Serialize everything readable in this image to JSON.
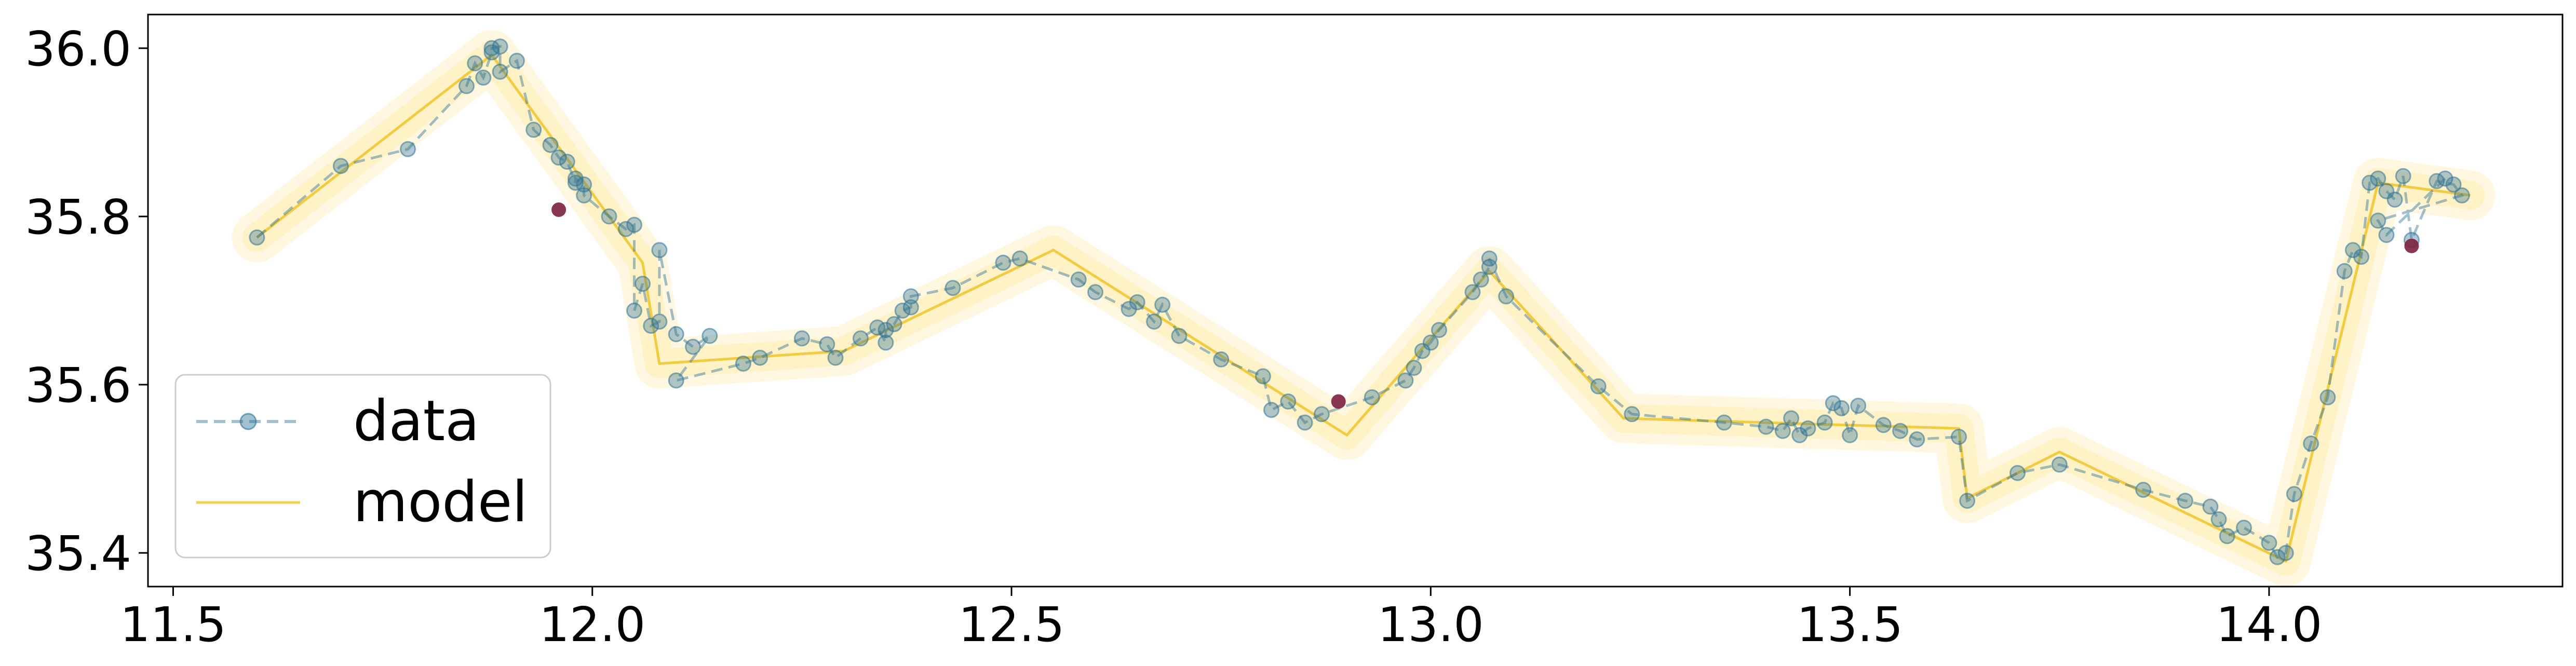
{
  "chart_data": {
    "type": "line",
    "title": "",
    "xlabel": "",
    "ylabel": "",
    "xlim": [
      11.47,
      14.35
    ],
    "ylim": [
      35.36,
      36.04
    ],
    "xticks": [
      11.5,
      12.0,
      12.5,
      13.0,
      13.5,
      14.0
    ],
    "xtick_labels": [
      "11.5",
      "12.0",
      "12.5",
      "13.0",
      "13.5",
      "14.0"
    ],
    "yticks": [
      35.4,
      35.6,
      35.8,
      36.0
    ],
    "ytick_labels": [
      "35.4",
      "35.6",
      "35.8",
      "36.0"
    ],
    "grid": false,
    "legend_position": "lower-left",
    "colors": {
      "data": "#2f7396",
      "model": "#f0c428",
      "band": "#fff1c4",
      "outlier": "#7d1f3e"
    },
    "series": [
      {
        "name": "data",
        "style": "dashed-markers",
        "points": [
          [
            11.6,
            35.775
          ],
          [
            11.7,
            35.86
          ],
          [
            11.78,
            35.88
          ],
          [
            11.85,
            35.955
          ],
          [
            11.86,
            35.982
          ],
          [
            11.87,
            35.965
          ],
          [
            11.88,
            35.995
          ],
          [
            11.88,
            36.0
          ],
          [
            11.89,
            36.002
          ],
          [
            11.89,
            35.972
          ],
          [
            11.91,
            35.985
          ],
          [
            11.93,
            35.903
          ],
          [
            11.95,
            35.885
          ],
          [
            11.96,
            35.87
          ],
          [
            11.97,
            35.865
          ],
          [
            11.98,
            35.84
          ],
          [
            11.98,
            35.845
          ],
          [
            11.99,
            35.838
          ],
          [
            11.99,
            35.825
          ],
          [
            12.02,
            35.8
          ],
          [
            12.04,
            35.785
          ],
          [
            12.05,
            35.79
          ],
          [
            12.05,
            35.688
          ],
          [
            12.06,
            35.72
          ],
          [
            12.07,
            35.67
          ],
          [
            12.08,
            35.675
          ],
          [
            12.08,
            35.76
          ],
          [
            12.1,
            35.66
          ],
          [
            12.12,
            35.645
          ],
          [
            12.14,
            35.658
          ],
          [
            12.1,
            35.605
          ],
          [
            12.18,
            35.625
          ],
          [
            12.2,
            35.632
          ],
          [
            12.25,
            35.655
          ],
          [
            12.28,
            35.648
          ],
          [
            12.29,
            35.632
          ],
          [
            12.32,
            35.655
          ],
          [
            12.34,
            35.668
          ],
          [
            12.35,
            35.65
          ],
          [
            12.35,
            35.665
          ],
          [
            12.36,
            35.672
          ],
          [
            12.37,
            35.688
          ],
          [
            12.38,
            35.692
          ],
          [
            12.38,
            35.705
          ],
          [
            12.43,
            35.715
          ],
          [
            12.49,
            35.745
          ],
          [
            12.51,
            35.75
          ],
          [
            12.58,
            35.725
          ],
          [
            12.6,
            35.71
          ],
          [
            12.64,
            35.69
          ],
          [
            12.65,
            35.698
          ],
          [
            12.67,
            35.675
          ],
          [
            12.68,
            35.695
          ],
          [
            12.7,
            35.658
          ],
          [
            12.75,
            35.63
          ],
          [
            12.8,
            35.61
          ],
          [
            12.81,
            35.57
          ],
          [
            12.83,
            35.58
          ],
          [
            12.85,
            35.555
          ],
          [
            12.87,
            35.565
          ],
          [
            12.93,
            35.585
          ],
          [
            12.97,
            35.605
          ],
          [
            12.98,
            35.62
          ],
          [
            12.99,
            35.64
          ],
          [
            13.0,
            35.65
          ],
          [
            13.01,
            35.665
          ],
          [
            13.05,
            35.71
          ],
          [
            13.06,
            35.725
          ],
          [
            13.07,
            35.74
          ],
          [
            13.07,
            35.75
          ],
          [
            13.09,
            35.705
          ],
          [
            13.2,
            35.598
          ],
          [
            13.24,
            35.565
          ],
          [
            13.35,
            35.555
          ],
          [
            13.4,
            35.55
          ],
          [
            13.42,
            35.545
          ],
          [
            13.43,
            35.56
          ],
          [
            13.44,
            35.54
          ],
          [
            13.45,
            35.548
          ],
          [
            13.47,
            35.555
          ],
          [
            13.48,
            35.578
          ],
          [
            13.49,
            35.572
          ],
          [
            13.5,
            35.54
          ],
          [
            13.51,
            35.575
          ],
          [
            13.54,
            35.552
          ],
          [
            13.56,
            35.545
          ],
          [
            13.58,
            35.535
          ],
          [
            13.63,
            35.538
          ],
          [
            13.64,
            35.462
          ],
          [
            13.7,
            35.495
          ],
          [
            13.75,
            35.505
          ],
          [
            13.85,
            35.475
          ],
          [
            13.9,
            35.462
          ],
          [
            13.93,
            35.455
          ],
          [
            13.94,
            35.44
          ],
          [
            13.95,
            35.42
          ],
          [
            13.97,
            35.43
          ],
          [
            14.0,
            35.412
          ],
          [
            14.01,
            35.395
          ],
          [
            14.02,
            35.4
          ],
          [
            14.03,
            35.47
          ],
          [
            14.05,
            35.53
          ],
          [
            14.07,
            35.585
          ],
          [
            14.09,
            35.735
          ],
          [
            14.1,
            35.76
          ],
          [
            14.11,
            35.752
          ],
          [
            14.12,
            35.84
          ],
          [
            14.13,
            35.845
          ],
          [
            14.14,
            35.83
          ],
          [
            14.15,
            35.82
          ],
          [
            14.16,
            35.848
          ],
          [
            14.17,
            35.772
          ],
          [
            14.2,
            35.842
          ],
          [
            14.22,
            35.838
          ],
          [
            14.23,
            35.825
          ],
          [
            14.13,
            35.795
          ],
          [
            14.14,
            35.778
          ],
          [
            14.21,
            35.845
          ]
        ]
      },
      {
        "name": "model",
        "style": "line-with-band",
        "points": [
          [
            11.6,
            35.775
          ],
          [
            11.88,
            35.992
          ],
          [
            12.06,
            35.745
          ],
          [
            12.08,
            35.625
          ],
          [
            12.3,
            35.64
          ],
          [
            12.55,
            35.76
          ],
          [
            12.9,
            35.54
          ],
          [
            13.07,
            35.735
          ],
          [
            13.23,
            35.56
          ],
          [
            13.63,
            35.548
          ],
          [
            13.64,
            35.465
          ],
          [
            13.75,
            35.52
          ],
          [
            14.02,
            35.39
          ],
          [
            14.13,
            35.84
          ],
          [
            14.24,
            35.825
          ]
        ]
      },
      {
        "name": "",
        "style": "outlier-markers",
        "points": [
          [
            11.96,
            35.808
          ],
          [
            12.89,
            35.58
          ],
          [
            14.17,
            35.765
          ]
        ]
      }
    ]
  },
  "legend": {
    "items": [
      {
        "label": "data",
        "kind": "dashed-marker"
      },
      {
        "label": "model",
        "kind": "line"
      }
    ]
  }
}
